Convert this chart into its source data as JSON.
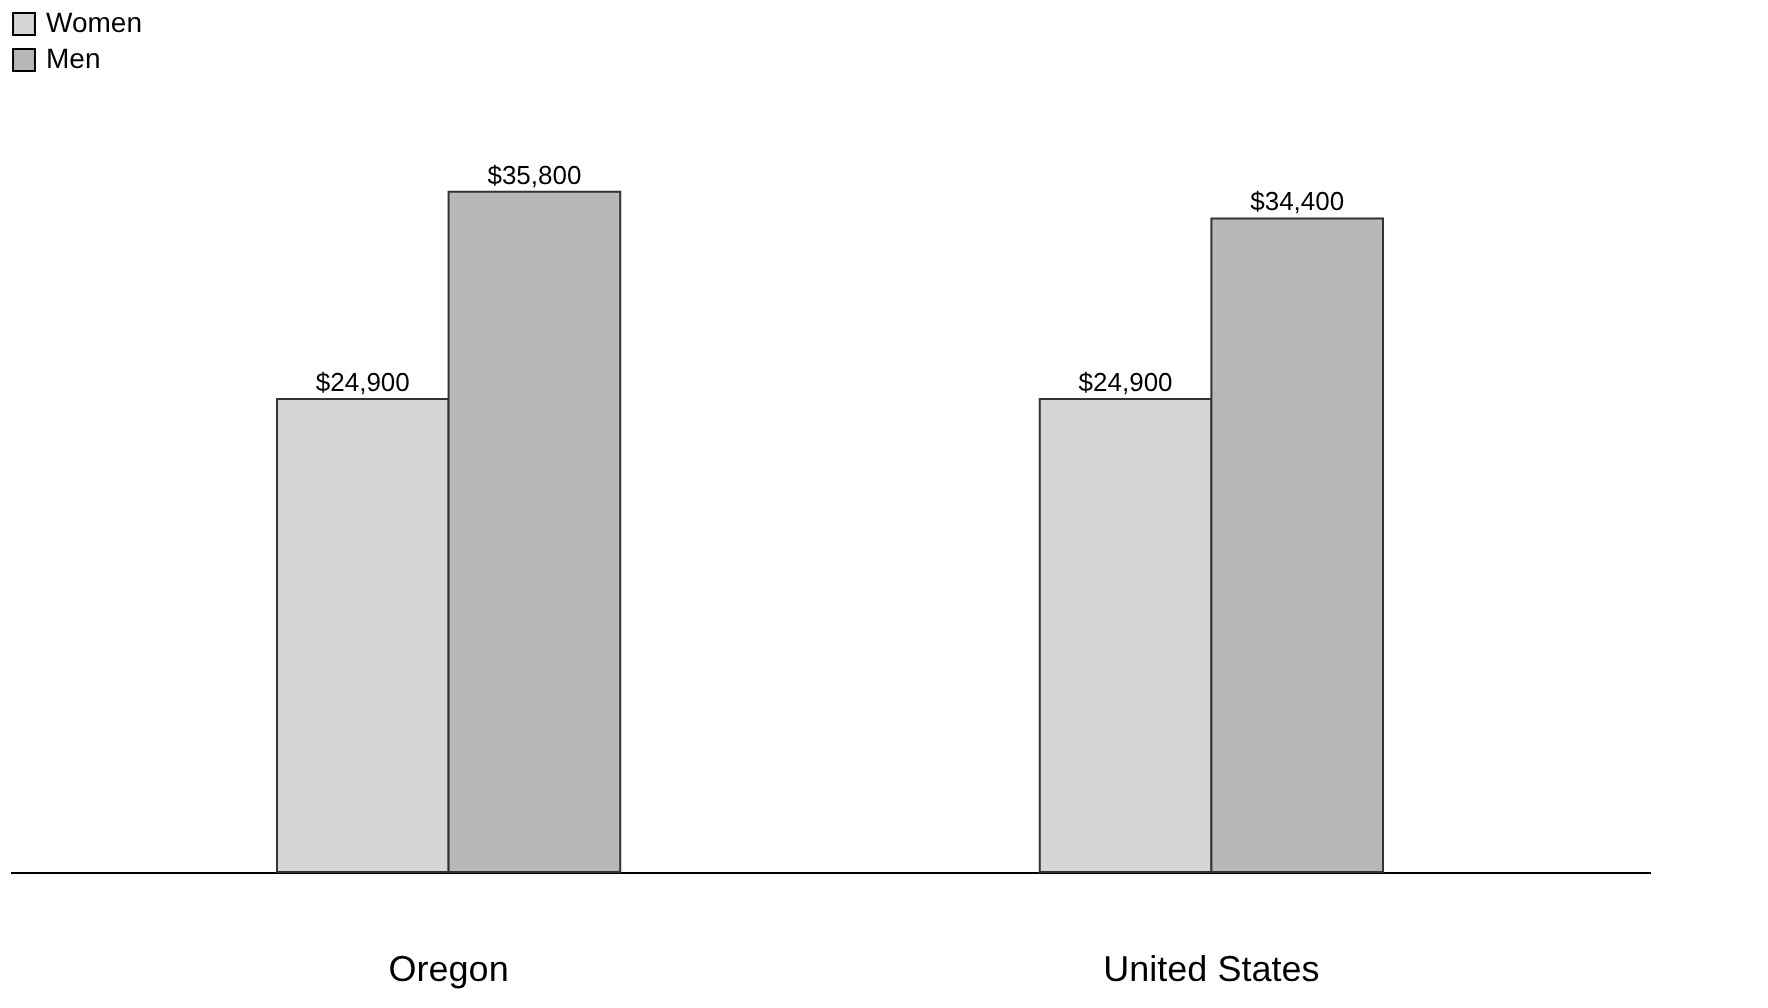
{
  "chart_data": {
    "type": "bar",
    "categories": [
      "Oregon",
      "United States"
    ],
    "series": [
      {
        "name": "Women",
        "color": "#d6d6d6",
        "values": [
          24900,
          24900
        ],
        "value_labels": [
          "$24,900",
          "$24,900"
        ]
      },
      {
        "name": "Men",
        "color": "#b8b8b8",
        "values": [
          35800,
          34400
        ],
        "value_labels": [
          "$35,800",
          "$34,400"
        ]
      }
    ],
    "legend": "top",
    "tick_labels": "x",
    "grid": false
  }
}
